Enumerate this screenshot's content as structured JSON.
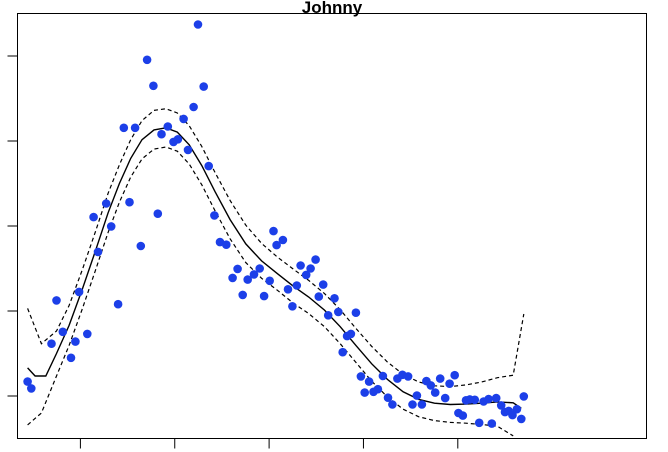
{
  "chart_data": {
    "type": "scatter",
    "title": "Johnny",
    "xlabel": "",
    "ylabel": "",
    "xlim": [
      0,
      100
    ],
    "ylim": [
      0,
      100
    ],
    "point_color": "#1c3fe8",
    "line_color": "#000000",
    "grid": false,
    "points": [
      {
        "x": 1.6,
        "y": 13.4
      },
      {
        "x": 2.2,
        "y": 11.8
      },
      {
        "x": 5.4,
        "y": 22.3
      },
      {
        "x": 6.2,
        "y": 32.5
      },
      {
        "x": 7.2,
        "y": 25.1
      },
      {
        "x": 8.5,
        "y": 19.0
      },
      {
        "x": 9.2,
        "y": 22.8
      },
      {
        "x": 9.8,
        "y": 34.5
      },
      {
        "x": 11.1,
        "y": 24.6
      },
      {
        "x": 12.1,
        "y": 52.1
      },
      {
        "x": 12.8,
        "y": 43.9
      },
      {
        "x": 14.1,
        "y": 55.3
      },
      {
        "x": 14.9,
        "y": 49.9
      },
      {
        "x": 16.0,
        "y": 31.6
      },
      {
        "x": 16.9,
        "y": 73.1
      },
      {
        "x": 17.8,
        "y": 55.6
      },
      {
        "x": 18.7,
        "y": 73.1
      },
      {
        "x": 19.6,
        "y": 45.3
      },
      {
        "x": 20.6,
        "y": 89.1
      },
      {
        "x": 21.6,
        "y": 83.0
      },
      {
        "x": 22.3,
        "y": 52.9
      },
      {
        "x": 22.9,
        "y": 71.6
      },
      {
        "x": 23.9,
        "y": 73.4
      },
      {
        "x": 24.8,
        "y": 69.8
      },
      {
        "x": 25.5,
        "y": 70.4
      },
      {
        "x": 26.4,
        "y": 75.2
      },
      {
        "x": 27.1,
        "y": 67.9
      },
      {
        "x": 28.0,
        "y": 78.0
      },
      {
        "x": 28.7,
        "y": 97.4
      },
      {
        "x": 29.6,
        "y": 82.8
      },
      {
        "x": 30.4,
        "y": 64.1
      },
      {
        "x": 31.3,
        "y": 52.5
      },
      {
        "x": 32.2,
        "y": 46.2
      },
      {
        "x": 33.2,
        "y": 45.6
      },
      {
        "x": 34.2,
        "y": 37.8
      },
      {
        "x": 35.0,
        "y": 39.9
      },
      {
        "x": 35.8,
        "y": 33.8
      },
      {
        "x": 36.6,
        "y": 37.4
      },
      {
        "x": 37.6,
        "y": 38.6
      },
      {
        "x": 38.5,
        "y": 40.0
      },
      {
        "x": 39.2,
        "y": 33.5
      },
      {
        "x": 40.1,
        "y": 37.1
      },
      {
        "x": 40.7,
        "y": 48.8
      },
      {
        "x": 41.2,
        "y": 45.5
      },
      {
        "x": 42.2,
        "y": 46.7
      },
      {
        "x": 43.0,
        "y": 35.1
      },
      {
        "x": 43.7,
        "y": 31.1
      },
      {
        "x": 44.4,
        "y": 36.0
      },
      {
        "x": 45.0,
        "y": 40.7
      },
      {
        "x": 45.9,
        "y": 38.5
      },
      {
        "x": 46.6,
        "y": 40.0
      },
      {
        "x": 47.4,
        "y": 42.1
      },
      {
        "x": 47.9,
        "y": 33.4
      },
      {
        "x": 48.6,
        "y": 36.2
      },
      {
        "x": 49.4,
        "y": 29.0
      },
      {
        "x": 50.4,
        "y": 33.0
      },
      {
        "x": 51.0,
        "y": 29.8
      },
      {
        "x": 51.7,
        "y": 20.3
      },
      {
        "x": 52.4,
        "y": 24.1
      },
      {
        "x": 53.0,
        "y": 24.6
      },
      {
        "x": 53.8,
        "y": 29.6
      },
      {
        "x": 54.6,
        "y": 14.6
      },
      {
        "x": 55.2,
        "y": 10.8
      },
      {
        "x": 55.9,
        "y": 13.4
      },
      {
        "x": 56.6,
        "y": 11.0
      },
      {
        "x": 57.3,
        "y": 11.6
      },
      {
        "x": 58.1,
        "y": 14.7
      },
      {
        "x": 58.9,
        "y": 9.6
      },
      {
        "x": 59.6,
        "y": 8.0
      },
      {
        "x": 60.4,
        "y": 14.1
      },
      {
        "x": 61.2,
        "y": 15.0
      },
      {
        "x": 62.1,
        "y": 14.6
      },
      {
        "x": 62.8,
        "y": 8.0
      },
      {
        "x": 63.5,
        "y": 10.1
      },
      {
        "x": 64.3,
        "y": 8.0
      },
      {
        "x": 65.0,
        "y": 13.5
      },
      {
        "x": 65.7,
        "y": 12.5
      },
      {
        "x": 66.4,
        "y": 10.8
      },
      {
        "x": 67.2,
        "y": 14.1
      },
      {
        "x": 68.0,
        "y": 9.5
      },
      {
        "x": 68.7,
        "y": 12.9
      },
      {
        "x": 69.5,
        "y": 14.9
      },
      {
        "x": 70.1,
        "y": 6.0
      },
      {
        "x": 70.8,
        "y": 5.4
      },
      {
        "x": 71.3,
        "y": 9.0
      },
      {
        "x": 71.9,
        "y": 9.2
      },
      {
        "x": 72.7,
        "y": 9.1
      },
      {
        "x": 73.4,
        "y": 3.7
      },
      {
        "x": 74.1,
        "y": 8.7
      },
      {
        "x": 74.9,
        "y": 9.3
      },
      {
        "x": 75.4,
        "y": 3.5
      },
      {
        "x": 76.1,
        "y": 9.5
      },
      {
        "x": 76.9,
        "y": 7.8
      },
      {
        "x": 77.5,
        "y": 6.2
      },
      {
        "x": 78.1,
        "y": 6.5
      },
      {
        "x": 78.7,
        "y": 5.5
      },
      {
        "x": 79.4,
        "y": 6.9
      },
      {
        "x": 80.1,
        "y": 4.6
      },
      {
        "x": 80.5,
        "y": 9.9
      }
    ],
    "fit": [
      {
        "x": 1.6,
        "y": 16.6
      },
      {
        "x": 2.8,
        "y": 14.7
      },
      {
        "x": 4.5,
        "y": 14.7
      },
      {
        "x": 6.2,
        "y": 20.0
      },
      {
        "x": 8.2,
        "y": 26.6
      },
      {
        "x": 10.3,
        "y": 35.1
      },
      {
        "x": 12.4,
        "y": 44.2
      },
      {
        "x": 14.4,
        "y": 53.1
      },
      {
        "x": 16.2,
        "y": 60.0
      },
      {
        "x": 18.0,
        "y": 65.9
      },
      {
        "x": 19.8,
        "y": 70.3
      },
      {
        "x": 21.7,
        "y": 72.6
      },
      {
        "x": 23.6,
        "y": 73.1
      },
      {
        "x": 25.4,
        "y": 72.1
      },
      {
        "x": 27.3,
        "y": 69.1
      },
      {
        "x": 29.3,
        "y": 64.2
      },
      {
        "x": 31.4,
        "y": 58.1
      },
      {
        "x": 33.8,
        "y": 51.5
      },
      {
        "x": 36.3,
        "y": 45.8
      },
      {
        "x": 38.8,
        "y": 41.8
      },
      {
        "x": 41.3,
        "y": 38.8
      },
      {
        "x": 43.8,
        "y": 35.9
      },
      {
        "x": 46.3,
        "y": 33.3
      },
      {
        "x": 48.8,
        "y": 30.2
      },
      {
        "x": 51.3,
        "y": 26.3
      },
      {
        "x": 53.8,
        "y": 21.9
      },
      {
        "x": 56.3,
        "y": 17.6
      },
      {
        "x": 58.8,
        "y": 13.9
      },
      {
        "x": 61.3,
        "y": 11.0
      },
      {
        "x": 63.8,
        "y": 9.2
      },
      {
        "x": 66.3,
        "y": 8.3
      },
      {
        "x": 68.8,
        "y": 8.0
      },
      {
        "x": 71.3,
        "y": 8.1
      },
      {
        "x": 73.8,
        "y": 8.3
      },
      {
        "x": 76.3,
        "y": 8.6
      },
      {
        "x": 78.8,
        "y": 8.4
      },
      {
        "x": 80.1,
        "y": 7.1
      }
    ],
    "upper": [
      {
        "x": 1.6,
        "y": 30.6
      },
      {
        "x": 3.8,
        "y": 22.3
      },
      {
        "x": 6.2,
        "y": 25.3
      },
      {
        "x": 8.2,
        "y": 31.3
      },
      {
        "x": 10.3,
        "y": 39.7
      },
      {
        "x": 12.4,
        "y": 48.7
      },
      {
        "x": 14.4,
        "y": 57.7
      },
      {
        "x": 16.2,
        "y": 64.4
      },
      {
        "x": 18.0,
        "y": 70.3
      },
      {
        "x": 19.8,
        "y": 74.8
      },
      {
        "x": 21.7,
        "y": 77.2
      },
      {
        "x": 23.6,
        "y": 77.6
      },
      {
        "x": 25.4,
        "y": 76.6
      },
      {
        "x": 27.3,
        "y": 73.6
      },
      {
        "x": 29.3,
        "y": 68.7
      },
      {
        "x": 31.4,
        "y": 62.6
      },
      {
        "x": 33.8,
        "y": 56.0
      },
      {
        "x": 36.3,
        "y": 50.2
      },
      {
        "x": 38.8,
        "y": 45.9
      },
      {
        "x": 41.3,
        "y": 42.7
      },
      {
        "x": 43.8,
        "y": 39.9
      },
      {
        "x": 46.3,
        "y": 37.2
      },
      {
        "x": 48.8,
        "y": 34.1
      },
      {
        "x": 51.3,
        "y": 30.3
      },
      {
        "x": 53.8,
        "y": 25.9
      },
      {
        "x": 56.3,
        "y": 21.7
      },
      {
        "x": 58.8,
        "y": 18.0
      },
      {
        "x": 61.3,
        "y": 15.1
      },
      {
        "x": 63.8,
        "y": 13.3
      },
      {
        "x": 66.3,
        "y": 12.4
      },
      {
        "x": 68.8,
        "y": 12.2
      },
      {
        "x": 71.3,
        "y": 12.6
      },
      {
        "x": 73.8,
        "y": 13.3
      },
      {
        "x": 76.3,
        "y": 14.3
      },
      {
        "x": 78.8,
        "y": 14.9
      },
      {
        "x": 80.5,
        "y": 29.3
      }
    ],
    "lower": [
      {
        "x": 1.6,
        "y": 3.2
      },
      {
        "x": 3.8,
        "y": 6.0
      },
      {
        "x": 6.2,
        "y": 14.7
      },
      {
        "x": 8.2,
        "y": 21.9
      },
      {
        "x": 10.3,
        "y": 30.5
      },
      {
        "x": 12.4,
        "y": 39.6
      },
      {
        "x": 14.4,
        "y": 48.5
      },
      {
        "x": 16.2,
        "y": 55.6
      },
      {
        "x": 18.0,
        "y": 61.5
      },
      {
        "x": 19.8,
        "y": 65.8
      },
      {
        "x": 21.7,
        "y": 68.1
      },
      {
        "x": 23.6,
        "y": 68.6
      },
      {
        "x": 25.4,
        "y": 67.6
      },
      {
        "x": 27.3,
        "y": 64.6
      },
      {
        "x": 29.3,
        "y": 59.7
      },
      {
        "x": 31.4,
        "y": 53.6
      },
      {
        "x": 33.8,
        "y": 47.0
      },
      {
        "x": 36.3,
        "y": 41.4
      },
      {
        "x": 38.8,
        "y": 37.7
      },
      {
        "x": 41.3,
        "y": 34.9
      },
      {
        "x": 43.8,
        "y": 31.9
      },
      {
        "x": 46.3,
        "y": 29.4
      },
      {
        "x": 48.8,
        "y": 26.3
      },
      {
        "x": 51.3,
        "y": 22.3
      },
      {
        "x": 53.8,
        "y": 17.9
      },
      {
        "x": 56.3,
        "y": 13.5
      },
      {
        "x": 58.8,
        "y": 9.8
      },
      {
        "x": 61.3,
        "y": 6.9
      },
      {
        "x": 63.8,
        "y": 5.1
      },
      {
        "x": 66.3,
        "y": 4.2
      },
      {
        "x": 68.8,
        "y": 3.8
      },
      {
        "x": 71.3,
        "y": 3.6
      },
      {
        "x": 73.8,
        "y": 3.3
      },
      {
        "x": 76.3,
        "y": 2.9
      },
      {
        "x": 78.8,
        "y": 0.6
      }
    ],
    "x_ticks": [
      10,
      25,
      40,
      55,
      70
    ],
    "y_ticks": [
      10,
      30,
      50,
      70,
      90
    ]
  }
}
